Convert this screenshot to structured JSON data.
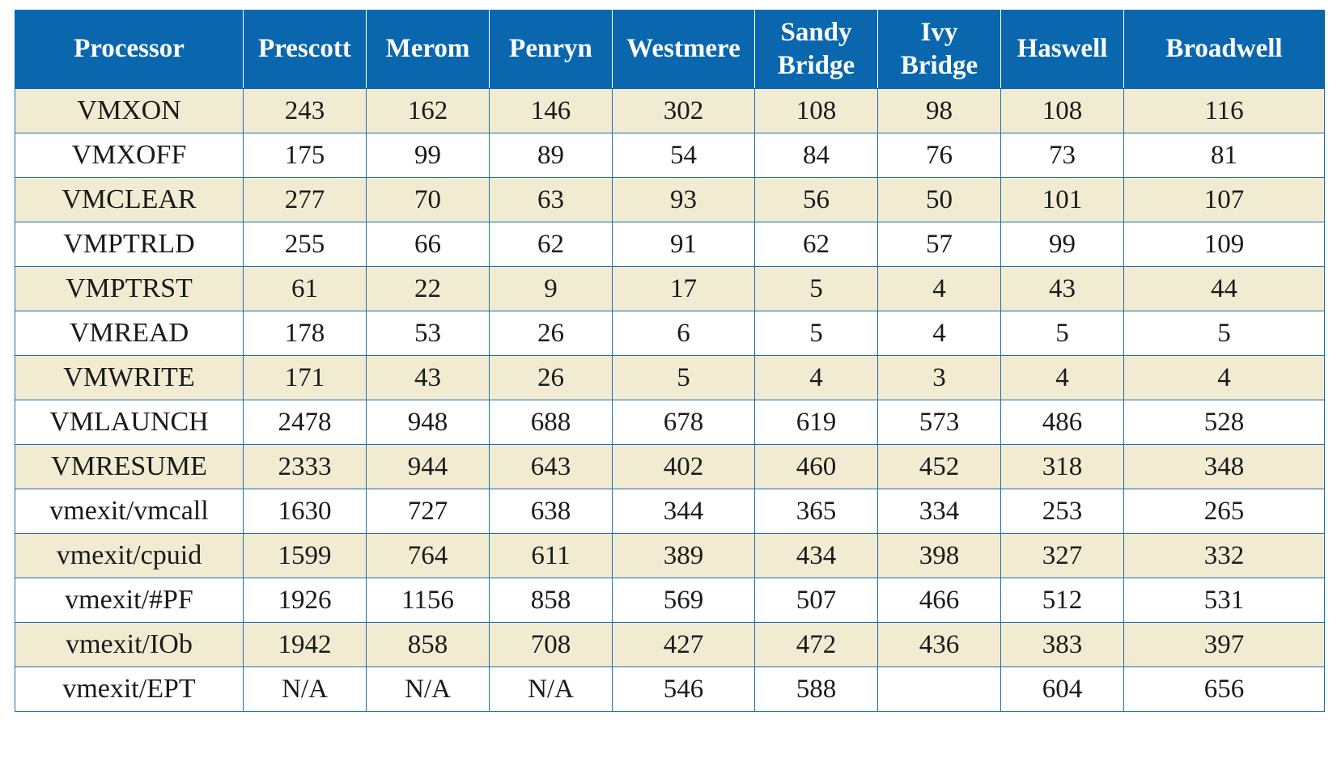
{
  "headers": [
    "Processor",
    "Prescott",
    "Merom",
    "Penryn",
    "Westmere",
    "Sandy Bridge",
    "Ivy Bridge",
    "Haswell",
    "Broadwell"
  ],
  "rows": [
    [
      "VMXON",
      "243",
      "162",
      "146",
      "302",
      "108",
      "98",
      "108",
      "116"
    ],
    [
      "VMXOFF",
      "175",
      "99",
      "89",
      "54",
      "84",
      "76",
      "73",
      "81"
    ],
    [
      "VMCLEAR",
      "277",
      "70",
      "63",
      "93",
      "56",
      "50",
      "101",
      "107"
    ],
    [
      "VMPTRLD",
      "255",
      "66",
      "62",
      "91",
      "62",
      "57",
      "99",
      "109"
    ],
    [
      "VMPTRST",
      "61",
      "22",
      "9",
      "17",
      "5",
      "4",
      "43",
      "44"
    ],
    [
      "VMREAD",
      "178",
      "53",
      "26",
      "6",
      "5",
      "4",
      "5",
      "5"
    ],
    [
      "VMWRITE",
      "171",
      "43",
      "26",
      "5",
      "4",
      "3",
      "4",
      "4"
    ],
    [
      "VMLAUNCH",
      "2478",
      "948",
      "688",
      "678",
      "619",
      "573",
      "486",
      "528"
    ],
    [
      "VMRESUME",
      "2333",
      "944",
      "643",
      "402",
      "460",
      "452",
      "318",
      "348"
    ],
    [
      "vmexit/vmcall",
      "1630",
      "727",
      "638",
      "344",
      "365",
      "334",
      "253",
      "265"
    ],
    [
      "vmexit/cpuid",
      "1599",
      "764",
      "611",
      "389",
      "434",
      "398",
      "327",
      "332"
    ],
    [
      "vmexit/#PF",
      "1926",
      "1156",
      "858",
      "569",
      "507",
      "466",
      "512",
      "531"
    ],
    [
      "vmexit/IOb",
      "1942",
      "858",
      "708",
      "427",
      "472",
      "436",
      "383",
      "397"
    ],
    [
      "vmexit/EPT",
      "N/A",
      "N/A",
      "N/A",
      "546",
      "588",
      "",
      "604",
      "656"
    ]
  ],
  "colors": {
    "header_bg": "#0a67ae",
    "header_text": "#ffffff",
    "row_odd_bg": "#f1ebd2",
    "row_even_bg": "#ffffff",
    "grid": "#1f6fb0"
  }
}
